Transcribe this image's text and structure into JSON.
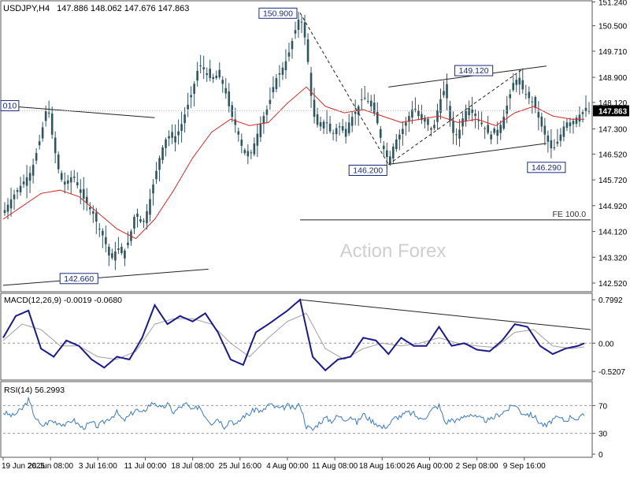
{
  "header": {
    "symbol": "USDJPY,H4",
    "ohlc": "147.886 148.062 147.676 147.863"
  },
  "watermark": "Action Forex",
  "chart_data": [
    {
      "type": "candlestick",
      "name": "price",
      "ylim": [
        142.3,
        151.2
      ],
      "y_ticks": [
        "151.240",
        "150.500",
        "149.710",
        "148.900",
        "148.120",
        "147.300",
        "146.520",
        "145.720",
        "144.920",
        "144.120",
        "143.320",
        "142.520"
      ],
      "y_tick_values": [
        151.24,
        150.5,
        149.71,
        148.9,
        148.12,
        147.3,
        146.52,
        145.72,
        144.92,
        144.12,
        143.32,
        142.52
      ],
      "current_price": "147.863",
      "close_points": [
        [
          0,
          144.7
        ],
        [
          3,
          145.2
        ],
        [
          6,
          145.6
        ],
        [
          9,
          146.0
        ],
        [
          12,
          147.1
        ],
        [
          14,
          148.1
        ],
        [
          16,
          146.8
        ],
        [
          18,
          145.8
        ],
        [
          20,
          145.5
        ],
        [
          22,
          145.9
        ],
        [
          25,
          145.2
        ],
        [
          28,
          144.8
        ],
        [
          30,
          144.3
        ],
        [
          32,
          143.9
        ],
        [
          34,
          143.2
        ],
        [
          36,
          143.6
        ],
        [
          38,
          143.4
        ],
        [
          40,
          143.9
        ],
        [
          42,
          144.8
        ],
        [
          44,
          144.3
        ],
        [
          46,
          144.9
        ],
        [
          48,
          145.8
        ],
        [
          50,
          146.6
        ],
        [
          52,
          147.1
        ],
        [
          54,
          147.0
        ],
        [
          56,
          147.3
        ],
        [
          58,
          147.9
        ],
        [
          60,
          148.5
        ],
        [
          62,
          149.3
        ],
        [
          64,
          149.1
        ],
        [
          66,
          148.8
        ],
        [
          68,
          149.0
        ],
        [
          70,
          148.6
        ],
        [
          72,
          147.8
        ],
        [
          74,
          147.3
        ],
        [
          76,
          146.6
        ],
        [
          78,
          146.4
        ],
        [
          80,
          147.0
        ],
        [
          82,
          147.6
        ],
        [
          84,
          148.0
        ],
        [
          86,
          148.8
        ],
        [
          88,
          149.1
        ],
        [
          90,
          149.5
        ],
        [
          92,
          150.2
        ],
        [
          94,
          150.85
        ],
        [
          96,
          149.9
        ],
        [
          98,
          147.8
        ],
        [
          100,
          147.3
        ],
        [
          102,
          147.6
        ],
        [
          104,
          147.1
        ],
        [
          106,
          147.4
        ],
        [
          108,
          147.2
        ],
        [
          110,
          147.6
        ],
        [
          112,
          147.9
        ],
        [
          114,
          148.3
        ],
        [
          116,
          148.1
        ],
        [
          118,
          147.7
        ],
        [
          120,
          146.8
        ],
        [
          122,
          146.3
        ],
        [
          124,
          146.9
        ],
        [
          126,
          147.2
        ],
        [
          128,
          147.6
        ],
        [
          130,
          148.0
        ],
        [
          132,
          147.6
        ],
        [
          134,
          147.5
        ],
        [
          136,
          147.2
        ],
        [
          138,
          148.1
        ],
        [
          140,
          148.6
        ],
        [
          142,
          147.2
        ],
        [
          144,
          147.1
        ],
        [
          146,
          147.8
        ],
        [
          148,
          148.0
        ],
        [
          150,
          147.6
        ],
        [
          152,
          147.4
        ],
        [
          154,
          147.1
        ],
        [
          156,
          147.2
        ],
        [
          158,
          147.5
        ],
        [
          160,
          148.2
        ],
        [
          162,
          148.9
        ],
        [
          164,
          148.6
        ],
        [
          166,
          148.3
        ],
        [
          168,
          148.1
        ],
        [
          170,
          147.5
        ],
        [
          172,
          147.0
        ],
        [
          174,
          146.6
        ],
        [
          176,
          147.0
        ],
        [
          178,
          147.5
        ],
        [
          180,
          147.5
        ],
        [
          182,
          147.7
        ],
        [
          184,
          147.86
        ]
      ],
      "ma_points": [
        [
          0,
          144.5
        ],
        [
          6,
          144.9
        ],
        [
          12,
          145.3
        ],
        [
          18,
          145.4
        ],
        [
          24,
          145.2
        ],
        [
          30,
          144.7
        ],
        [
          36,
          144.2
        ],
        [
          42,
          143.9
        ],
        [
          48,
          144.5
        ],
        [
          54,
          145.4
        ],
        [
          60,
          146.4
        ],
        [
          66,
          147.2
        ],
        [
          72,
          147.6
        ],
        [
          78,
          147.4
        ],
        [
          84,
          147.5
        ],
        [
          90,
          148.1
        ],
        [
          96,
          148.6
        ],
        [
          102,
          148.0
        ],
        [
          108,
          147.8
        ],
        [
          114,
          147.9
        ],
        [
          120,
          147.7
        ],
        [
          126,
          147.5
        ],
        [
          132,
          147.6
        ],
        [
          138,
          147.7
        ],
        [
          144,
          147.5
        ],
        [
          150,
          147.6
        ],
        [
          156,
          147.4
        ],
        [
          162,
          147.8
        ],
        [
          168,
          148.0
        ],
        [
          174,
          147.7
        ],
        [
          180,
          147.6
        ],
        [
          184,
          147.6
        ]
      ],
      "annotations": [
        {
          "text": "150.900",
          "x": 94,
          "y": 150.9
        },
        {
          "text": "149.120",
          "x": 156,
          "y": 149.12
        },
        {
          "text": "146.200",
          "x": 122,
          "y": 146.2
        },
        {
          "text": "146.290",
          "x": 172,
          "y": 146.29
        },
        {
          "text": "142.660",
          "x": 18,
          "y": 142.66
        },
        {
          "text": "010",
          "x": 0,
          "y": 148.02
        },
        {
          "text": "FE 100.0",
          "x": 184,
          "y": 144.48
        }
      ],
      "trendlines": [
        {
          "kind": "solid",
          "from": [
            0,
            148.02
          ],
          "to": [
            48,
            147.65
          ]
        },
        {
          "kind": "solid",
          "from": [
            0,
            142.45
          ],
          "to": [
            65,
            142.95
          ]
        },
        {
          "kind": "dashed",
          "from": [
            94,
            150.9
          ],
          "to": [
            122,
            146.2
          ]
        },
        {
          "kind": "dashed",
          "from": [
            122,
            146.2
          ],
          "to": [
            164,
            149.12
          ]
        },
        {
          "kind": "solid",
          "from": [
            122,
            146.2
          ],
          "to": [
            172,
            146.85
          ]
        },
        {
          "kind": "solid",
          "from": [
            122,
            148.6
          ],
          "to": [
            172,
            149.25
          ]
        },
        {
          "kind": "solid",
          "from": [
            94,
            144.48
          ],
          "to": [
            186,
            144.48
          ]
        }
      ]
    },
    {
      "type": "line",
      "name": "MACD(12,26,9)",
      "label": "MACD(12,26,9) -0.0019 -0.0680",
      "ylim": [
        -0.62,
        0.86
      ],
      "y_ticks": [
        "0.7992",
        "0.00",
        "-0.5207"
      ],
      "y_tick_values": [
        0.7992,
        0.0,
        -0.5207
      ],
      "macd_points": [
        [
          0,
          0.1
        ],
        [
          4,
          0.5
        ],
        [
          8,
          0.6
        ],
        [
          12,
          -0.1
        ],
        [
          16,
          -0.25
        ],
        [
          20,
          0.05
        ],
        [
          24,
          -0.05
        ],
        [
          28,
          -0.3
        ],
        [
          32,
          -0.45
        ],
        [
          36,
          -0.25
        ],
        [
          40,
          -0.3
        ],
        [
          44,
          0.1
        ],
        [
          48,
          0.7
        ],
        [
          52,
          0.35
        ],
        [
          56,
          0.5
        ],
        [
          60,
          0.4
        ],
        [
          64,
          0.55
        ],
        [
          68,
          0.2
        ],
        [
          72,
          -0.3
        ],
        [
          76,
          -0.4
        ],
        [
          80,
          0.2
        ],
        [
          84,
          0.35
        ],
        [
          90,
          0.6
        ],
        [
          94,
          0.8
        ],
        [
          98,
          -0.25
        ],
        [
          102,
          -0.5
        ],
        [
          106,
          -0.3
        ],
        [
          110,
          -0.25
        ],
        [
          114,
          0.1
        ],
        [
          118,
          0.05
        ],
        [
          122,
          -0.2
        ],
        [
          126,
          0.1
        ],
        [
          130,
          -0.05
        ],
        [
          134,
          -0.05
        ],
        [
          138,
          0.3
        ],
        [
          142,
          -0.05
        ],
        [
          146,
          0.0
        ],
        [
          150,
          -0.12
        ],
        [
          154,
          -0.15
        ],
        [
          158,
          0.05
        ],
        [
          162,
          0.35
        ],
        [
          166,
          0.3
        ],
        [
          170,
          -0.05
        ],
        [
          174,
          -0.2
        ],
        [
          178,
          -0.1
        ],
        [
          182,
          -0.05
        ],
        [
          184,
          -0.0019
        ]
      ],
      "signal_points": [
        [
          0,
          0.05
        ],
        [
          6,
          0.35
        ],
        [
          12,
          0.25
        ],
        [
          18,
          -0.05
        ],
        [
          24,
          -0.05
        ],
        [
          30,
          -0.25
        ],
        [
          36,
          -0.3
        ],
        [
          42,
          -0.15
        ],
        [
          48,
          0.35
        ],
        [
          54,
          0.45
        ],
        [
          60,
          0.45
        ],
        [
          66,
          0.35
        ],
        [
          72,
          0.0
        ],
        [
          78,
          -0.25
        ],
        [
          84,
          0.1
        ],
        [
          90,
          0.4
        ],
        [
          96,
          0.55
        ],
        [
          102,
          -0.1
        ],
        [
          108,
          -0.3
        ],
        [
          114,
          -0.1
        ],
        [
          120,
          0.0
        ],
        [
          126,
          -0.05
        ],
        [
          132,
          0.0
        ],
        [
          138,
          0.1
        ],
        [
          144,
          0.0
        ],
        [
          150,
          -0.05
        ],
        [
          156,
          -0.08
        ],
        [
          162,
          0.2
        ],
        [
          168,
          0.25
        ],
        [
          174,
          -0.05
        ],
        [
          180,
          -0.1
        ],
        [
          184,
          -0.068
        ]
      ],
      "trendline": {
        "from": [
          94,
          0.8
        ],
        "to": [
          186,
          0.25
        ]
      }
    },
    {
      "type": "line",
      "name": "RSI(14)",
      "label": "RSI(14) 56.2993",
      "ylim": [
        0,
        100
      ],
      "y_ticks": [
        "70",
        "30",
        "0"
      ],
      "y_tick_values": [
        70,
        30,
        0
      ],
      "points": [
        [
          0,
          60
        ],
        [
          3,
          55
        ],
        [
          6,
          65
        ],
        [
          8,
          78
        ],
        [
          10,
          55
        ],
        [
          12,
          40
        ],
        [
          15,
          48
        ],
        [
          18,
          45
        ],
        [
          20,
          42
        ],
        [
          22,
          50
        ],
        [
          25,
          38
        ],
        [
          28,
          45
        ],
        [
          30,
          40
        ],
        [
          33,
          50
        ],
        [
          36,
          60
        ],
        [
          38,
          48
        ],
        [
          40,
          55
        ],
        [
          42,
          65
        ],
        [
          44,
          58
        ],
        [
          46,
          70
        ],
        [
          48,
          75
        ],
        [
          50,
          65
        ],
        [
          52,
          72
        ],
        [
          54,
          60
        ],
        [
          56,
          68
        ],
        [
          58,
          72
        ],
        [
          60,
          62
        ],
        [
          62,
          70
        ],
        [
          64,
          55
        ],
        [
          66,
          45
        ],
        [
          68,
          52
        ],
        [
          70,
          40
        ],
        [
          72,
          50
        ],
        [
          74,
          42
        ],
        [
          76,
          55
        ],
        [
          78,
          58
        ],
        [
          80,
          66
        ],
        [
          82,
          60
        ],
        [
          84,
          72
        ],
        [
          86,
          68
        ],
        [
          88,
          65
        ],
        [
          90,
          70
        ],
        [
          92,
          65
        ],
        [
          94,
          72
        ],
        [
          96,
          40
        ],
        [
          98,
          35
        ],
        [
          100,
          45
        ],
        [
          102,
          52
        ],
        [
          104,
          48
        ],
        [
          106,
          55
        ],
        [
          108,
          50
        ],
        [
          110,
          55
        ],
        [
          112,
          45
        ],
        [
          114,
          58
        ],
        [
          116,
          50
        ],
        [
          118,
          45
        ],
        [
          120,
          38
        ],
        [
          122,
          42
        ],
        [
          124,
          52
        ],
        [
          126,
          55
        ],
        [
          128,
          60
        ],
        [
          130,
          58
        ],
        [
          132,
          50
        ],
        [
          134,
          55
        ],
        [
          136,
          65
        ],
        [
          138,
          70
        ],
        [
          140,
          45
        ],
        [
          142,
          50
        ],
        [
          144,
          48
        ],
        [
          146,
          55
        ],
        [
          148,
          58
        ],
        [
          150,
          52
        ],
        [
          152,
          50
        ],
        [
          154,
          48
        ],
        [
          156,
          55
        ],
        [
          158,
          60
        ],
        [
          160,
          65
        ],
        [
          162,
          72
        ],
        [
          164,
          60
        ],
        [
          166,
          58
        ],
        [
          168,
          55
        ],
        [
          170,
          45
        ],
        [
          172,
          40
        ],
        [
          174,
          50
        ],
        [
          176,
          52
        ],
        [
          178,
          48
        ],
        [
          180,
          55
        ],
        [
          182,
          50
        ],
        [
          184,
          56.3
        ]
      ]
    }
  ],
  "x_axis": {
    "labels": [
      "19 Jun 2025",
      "26 Jun 08:00",
      "3 Jul 16:00",
      "11 Jul 00:00",
      "18 Jul 08:00",
      "25 Jul 16:00",
      "4 Aug 00:00",
      "11 Aug 08:00",
      "18 Aug 16:00",
      "26 Aug 00:00",
      "2 Sep 08:00",
      "9 Sep 16:00"
    ],
    "label_index": [
      0,
      15,
      30,
      45,
      60,
      75,
      90,
      105,
      120,
      135,
      150,
      165
    ],
    "range": [
      0,
      186
    ]
  },
  "colors": {
    "candle": "#2f5560",
    "ma": "#d42a2a",
    "macd": "#1a1a8c",
    "signal": "#a0a0a0",
    "rsi": "#3b78c8",
    "watermark": "#cfcfcf"
  }
}
